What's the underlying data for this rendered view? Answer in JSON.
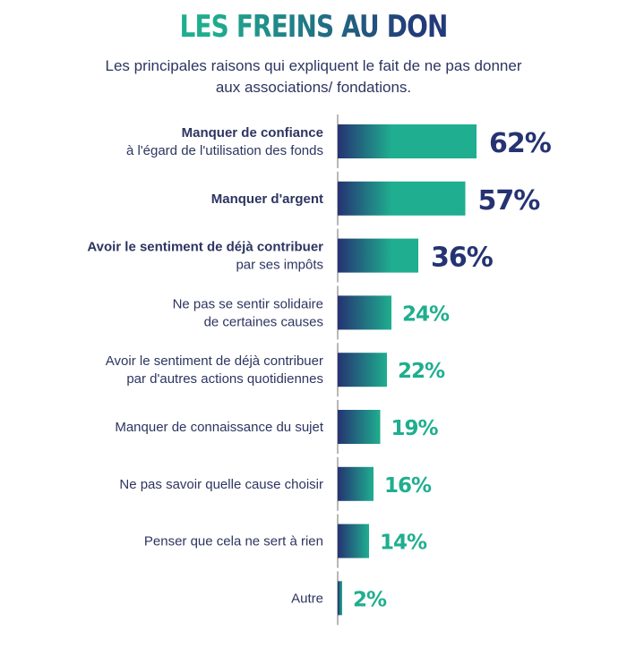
{
  "chart_data": {
    "type": "bar",
    "orientation": "horizontal",
    "title": "LES FREINS AU DON",
    "subtitle": [
      "Les principales raisons qui expliquent le fait de ne pas donner",
      "aux associations/ fondations."
    ],
    "categories": [
      [
        "Manquer de confiance",
        "à l'égard de l'utilisation des fonds"
      ],
      [
        "Manquer d'argent"
      ],
      [
        "Avoir le sentiment de déjà contribuer",
        "par ses impôts"
      ],
      [
        "Ne pas se sentir solidaire",
        "de certaines causes"
      ],
      [
        "Avoir le sentiment de déjà contribuer",
        "par d'autres actions quotidiennes"
      ],
      [
        "Manquer de connaissance du sujet"
      ],
      [
        "Ne pas savoir quelle cause choisir"
      ],
      [
        "Penser que cela ne sert à rien"
      ],
      [
        "Autre"
      ]
    ],
    "values": [
      62,
      57,
      36,
      24,
      22,
      19,
      16,
      14,
      2
    ],
    "value_labels": [
      "62%",
      "57%",
      "36%",
      "24%",
      "22%",
      "19%",
      "16%",
      "14%",
      "2%"
    ],
    "highlighted_count": 3,
    "unit": "%",
    "xlim": [
      0,
      100
    ],
    "colors": {
      "navy": "#253372",
      "teal": "#1fae8f",
      "axis": "#b8b8b8"
    }
  }
}
